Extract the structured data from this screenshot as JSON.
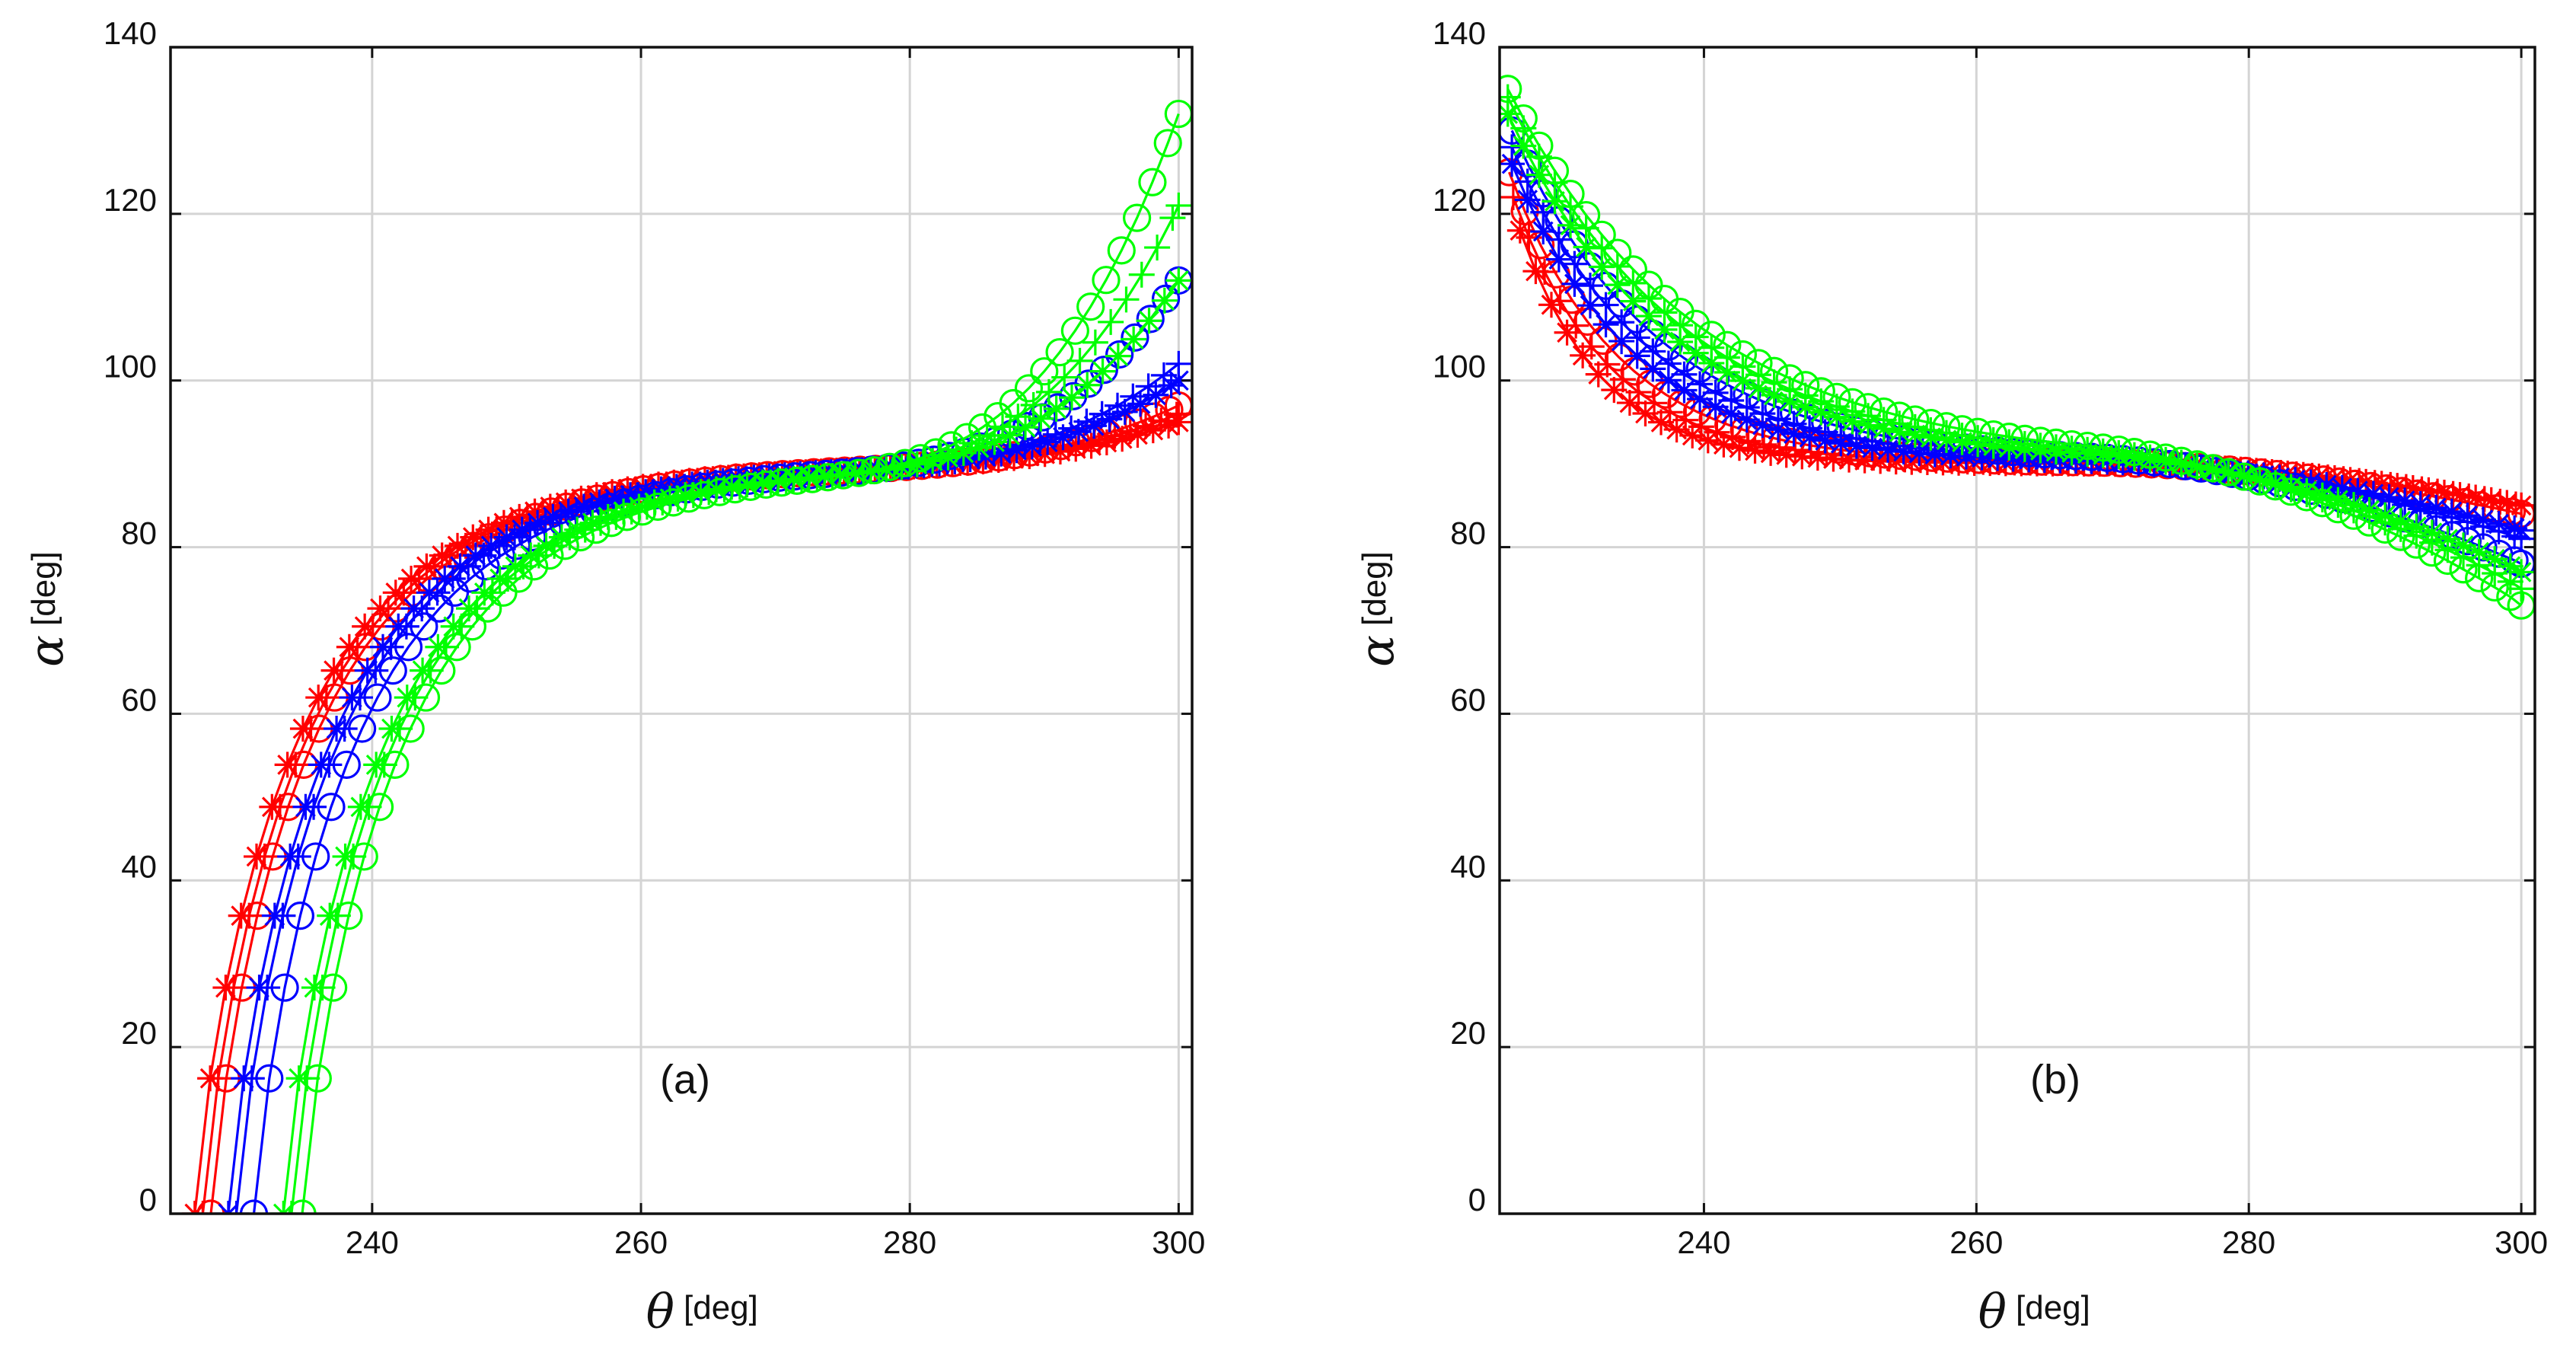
{
  "colors": {
    "red": "#ff0000",
    "blue": "#0000ff",
    "green": "#00ff00"
  },
  "chart_data": [
    {
      "type": "line",
      "panel_label": "(a)",
      "xlabel_symbol": "θ",
      "xlabel_unit": "[deg]",
      "ylabel_symbol": "α",
      "ylabel_unit": "[deg]",
      "xlim": [
        225,
        301
      ],
      "ylim": [
        0,
        140
      ],
      "xticks": [
        240,
        260,
        280,
        300
      ],
      "xtick_labels": [
        "240",
        "260",
        "280",
        "300"
      ],
      "yticks": [
        0,
        20,
        40,
        60,
        80,
        100,
        120,
        140
      ],
      "ytick_labels": [
        "0",
        "20",
        "40",
        "60",
        "80",
        "100",
        "120",
        "140"
      ],
      "grid": true,
      "series": [
        {
          "name": "red-star",
          "color": "red",
          "marker": "star",
          "x0": 226.8,
          "k": 2.4,
          "f0": 0.1745,
          "f1": 0.8,
          "y_end": 95
        },
        {
          "name": "red-plus",
          "color": "red",
          "marker": "plus",
          "x0": 227.4,
          "k": 2.4,
          "f0": 0.1745,
          "f1": 0.8,
          "y_end": 96
        },
        {
          "name": "red-circle",
          "color": "red",
          "marker": "circle",
          "x0": 228.0,
          "k": 2.4,
          "f0": 0.1745,
          "f1": 0.8,
          "y_end": 97
        },
        {
          "name": "blue-star",
          "color": "blue",
          "marker": "star",
          "x0": 229.3,
          "k": 2.4,
          "f0": 0.349,
          "f1": 0.55,
          "y_end": 100
        },
        {
          "name": "blue-plus",
          "color": "blue",
          "marker": "plus",
          "x0": 229.9,
          "k": 2.4,
          "f0": 0.349,
          "f1": 0.55,
          "y_end": 102
        },
        {
          "name": "blue-circle",
          "color": "blue",
          "marker": "circle",
          "x0": 231.2,
          "k": 2.4,
          "f0": 0.349,
          "f1": 0.55,
          "y_end": 112
        },
        {
          "name": "green-star",
          "color": "green",
          "marker": "star",
          "x0": 233.4,
          "k": 2.4,
          "f0": 0.436,
          "f1": 0.45,
          "y_end": 112
        },
        {
          "name": "green-plus",
          "color": "green",
          "marker": "plus",
          "x0": 234.0,
          "k": 2.4,
          "f0": 0.436,
          "f1": 0.45,
          "y_end": 121
        },
        {
          "name": "green-circle",
          "color": "green",
          "marker": "circle",
          "x0": 234.8,
          "k": 2.4,
          "f0": 0.436,
          "f1": 0.45,
          "y_end": 132
        }
      ]
    },
    {
      "type": "line",
      "panel_label": "(b)",
      "xlabel_symbol": "θ",
      "xlabel_unit": "[deg]",
      "ylabel_symbol": "α",
      "ylabel_unit": "[deg]",
      "xlim": [
        225,
        301
      ],
      "ylim": [
        0,
        140
      ],
      "xticks": [
        240,
        260,
        280,
        300
      ],
      "xtick_labels": [
        "240",
        "260",
        "280",
        "300"
      ],
      "yticks": [
        0,
        20,
        40,
        60,
        80,
        100,
        120,
        140
      ],
      "ytick_labels": [
        "0",
        "20",
        "40",
        "60",
        "80",
        "100",
        "120",
        "140"
      ],
      "grid": true,
      "series": [
        {
          "name": "red-star",
          "color": "red",
          "marker": "star",
          "x_start": 226.5,
          "y_start": 118,
          "y_end": 85,
          "tau": 6
        },
        {
          "name": "red-plus",
          "color": "red",
          "marker": "plus",
          "x_start": 226.0,
          "y_start": 122,
          "y_end": 85,
          "tau": 7
        },
        {
          "name": "red-circle",
          "color": "red",
          "marker": "circle",
          "x_start": 225.7,
          "y_start": 125,
          "y_end": 84,
          "tau": 8
        },
        {
          "name": "blue-star",
          "color": "blue",
          "marker": "star",
          "x_start": 225.9,
          "y_start": 126,
          "y_end": 82,
          "tau": 9
        },
        {
          "name": "blue-plus",
          "color": "blue",
          "marker": "plus",
          "x_start": 225.9,
          "y_start": 128,
          "y_end": 81,
          "tau": 10
        },
        {
          "name": "blue-circle",
          "color": "blue",
          "marker": "circle",
          "x_start": 225.9,
          "y_start": 130,
          "y_end": 78,
          "tau": 11
        },
        {
          "name": "green-star",
          "color": "green",
          "marker": "star",
          "x_start": 225.6,
          "y_start": 132,
          "y_end": 77,
          "tau": 12
        },
        {
          "name": "green-plus",
          "color": "green",
          "marker": "plus",
          "x_start": 225.6,
          "y_start": 134,
          "y_end": 75,
          "tau": 13
        },
        {
          "name": "green-circle",
          "color": "green",
          "marker": "circle",
          "x_start": 225.6,
          "y_start": 135,
          "y_end": 73,
          "tau": 14
        }
      ]
    }
  ]
}
